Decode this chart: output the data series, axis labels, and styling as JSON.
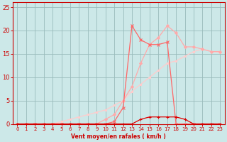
{
  "bg_color": "#cce8e8",
  "grid_color": "#99bbbb",
  "xlabel": "Vent moyen/en rafales ( km/h )",
  "xlim": [
    -0.5,
    23.5
  ],
  "ylim": [
    0,
    26
  ],
  "yticks": [
    0,
    5,
    10,
    15,
    20,
    25
  ],
  "xticks": [
    0,
    1,
    2,
    3,
    4,
    5,
    6,
    7,
    8,
    9,
    10,
    11,
    12,
    13,
    14,
    15,
    16,
    17,
    18,
    19,
    20,
    21,
    22,
    23
  ],
  "series": [
    {
      "x": [
        0,
        1,
        2,
        3,
        4,
        5,
        6,
        7,
        8,
        9,
        10,
        11,
        12,
        13,
        14,
        15,
        16,
        17,
        18,
        19,
        20,
        21,
        22,
        23
      ],
      "y": [
        0,
        0,
        0,
        0,
        0,
        0,
        0,
        0,
        0,
        0,
        0,
        0,
        0,
        0,
        1,
        1.5,
        1.5,
        1.5,
        1.5,
        1,
        0,
        0,
        0,
        0
      ],
      "color": "#dd0000",
      "marker": "+",
      "markersize": 3.5,
      "lw": 0.9
    },
    {
      "x": [
        0,
        1,
        2,
        3,
        4,
        5,
        6,
        7,
        8,
        9,
        10,
        11,
        12,
        13,
        14,
        15,
        16,
        17,
        18,
        19,
        20,
        21,
        22,
        23
      ],
      "y": [
        0,
        0,
        0,
        0,
        0,
        0,
        0,
        0,
        0,
        0,
        0,
        0.5,
        3.5,
        21,
        18,
        17,
        17,
        17.5,
        0,
        0,
        0,
        0,
        0,
        0
      ],
      "color": "#ff6666",
      "marker": "x",
      "markersize": 3.5,
      "lw": 0.9
    },
    {
      "x": [
        0,
        1,
        2,
        3,
        4,
        5,
        6,
        7,
        8,
        9,
        10,
        11,
        12,
        13,
        14,
        15,
        16,
        17,
        18,
        19,
        20,
        21,
        22,
        23
      ],
      "y": [
        0,
        0,
        0,
        0,
        0,
        0,
        0,
        0,
        0,
        0,
        1,
        2,
        5,
        8,
        13,
        17,
        18.5,
        21,
        19.5,
        16.5,
        16.5,
        16,
        15.5,
        15.5
      ],
      "color": "#ffaaaa",
      "marker": "D",
      "markersize": 2,
      "lw": 0.9
    },
    {
      "x": [
        0,
        1,
        2,
        3,
        4,
        5,
        6,
        7,
        8,
        9,
        10,
        11,
        12,
        13,
        14,
        15,
        16,
        17,
        18,
        19,
        20,
        21,
        22,
        23
      ],
      "y": [
        0,
        0,
        0,
        0,
        0,
        0.5,
        1,
        1.5,
        2,
        2.5,
        3,
        4,
        5,
        7,
        8.5,
        10,
        11.5,
        13,
        13.5,
        14.5,
        15.5,
        16,
        15.5,
        15.3
      ],
      "color": "#ffcccc",
      "marker": "s",
      "markersize": 1.5,
      "lw": 0.9
    }
  ]
}
